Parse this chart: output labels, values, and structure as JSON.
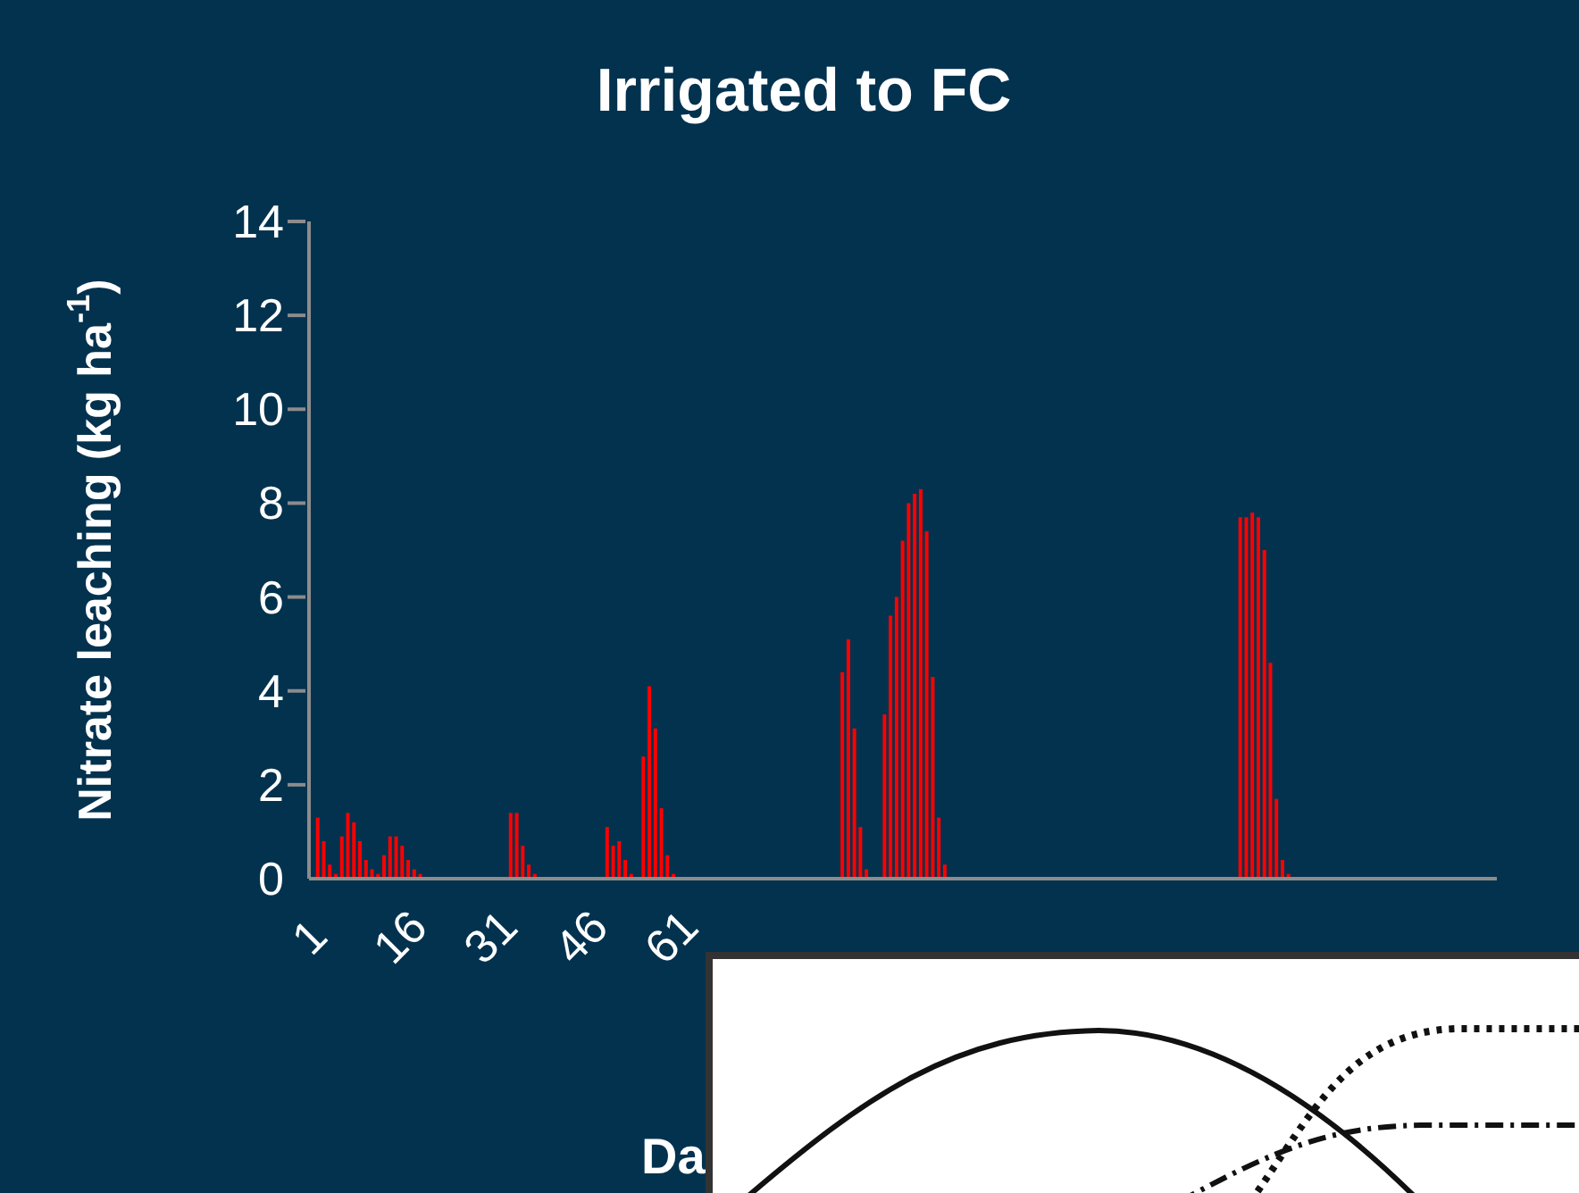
{
  "chart_data": {
    "type": "bar",
    "title": "Irrigated to FC",
    "xlabel": "Da",
    "ylabel": "Nitrate leaching (kg ha$^{-1}$)",
    "categories": [
      "1",
      null,
      null,
      null,
      null,
      null,
      null,
      null,
      null,
      null,
      null,
      null,
      null,
      null,
      null,
      "16",
      null,
      null,
      null,
      null,
      null,
      null,
      null,
      null,
      null,
      null,
      null,
      null,
      null,
      null,
      "31",
      null,
      null,
      null,
      null,
      null,
      null,
      null,
      null,
      null,
      null,
      null,
      null,
      null,
      null,
      "46",
      null,
      null,
      null,
      null,
      null,
      null,
      null,
      null,
      null,
      null,
      null,
      null,
      null,
      null,
      "61",
      null,
      null,
      null,
      null,
      null,
      null,
      null,
      null,
      null,
      null,
      null,
      null,
      null,
      null,
      null,
      null,
      null,
      null,
      null,
      null,
      null,
      null,
      null,
      null,
      null,
      null,
      null,
      null,
      null,
      null,
      null,
      null,
      null,
      null,
      null,
      null,
      null,
      null,
      null,
      null,
      null,
      null,
      null,
      null,
      null,
      null,
      null,
      null,
      null,
      null,
      null,
      null,
      null,
      null,
      null,
      null,
      null,
      null,
      null,
      null,
      null,
      null,
      null,
      null,
      null,
      null,
      null,
      null,
      null,
      null,
      null,
      null,
      null,
      null,
      null,
      null,
      null,
      null,
      null,
      null,
      null,
      null,
      null,
      null,
      null,
      null,
      null,
      null,
      null,
      null,
      null,
      null,
      null,
      null,
      null,
      null,
      null,
      null,
      null,
      null,
      null,
      null,
      null,
      null,
      null,
      null,
      null,
      null,
      null,
      null,
      null,
      null,
      null,
      null,
      null,
      null,
      null,
      null,
      null,
      null,
      null,
      null,
      null,
      null,
      null,
      null,
      null,
      null,
      null,
      null,
      null,
      null,
      null,
      null,
      null,
      null
    ],
    "values": [
      null,
      1.3,
      0.8,
      0.3,
      0.1,
      0.9,
      1.4,
      1.2,
      0.8,
      0.4,
      0.2,
      0.1,
      0.5,
      0.9,
      0.9,
      0.7,
      0.4,
      0.2,
      0.1,
      null,
      null,
      null,
      null,
      null,
      null,
      null,
      null,
      null,
      null,
      null,
      null,
      null,
      null,
      1.4,
      1.4,
      0.7,
      0.3,
      0.1,
      null,
      null,
      null,
      null,
      null,
      null,
      null,
      null,
      null,
      null,
      null,
      1.1,
      0.7,
      0.8,
      0.4,
      0.1,
      null,
      2.6,
      4.1,
      3.2,
      1.5,
      0.5,
      0.1,
      null,
      null,
      null,
      null,
      null,
      null,
      null,
      null,
      null,
      null,
      null,
      null,
      null,
      null,
      null,
      null,
      null,
      null,
      null,
      null,
      null,
      null,
      null,
      null,
      null,
      null,
      null,
      4.4,
      5.1,
      3.2,
      1.1,
      0.2,
      null,
      null,
      3.5,
      5.6,
      6.0,
      7.2,
      8.0,
      8.2,
      8.3,
      7.4,
      4.3,
      1.3,
      0.3,
      null,
      null,
      null,
      null,
      null,
      null,
      null,
      null,
      null,
      null,
      null,
      null,
      null,
      null,
      null,
      null,
      null,
      null,
      null,
      null,
      null,
      null,
      null,
      null,
      null,
      null,
      null,
      null,
      null,
      null,
      null,
      null,
      null,
      null,
      null,
      null,
      null,
      null,
      null,
      null,
      null,
      null,
      null,
      null,
      null,
      null,
      null,
      null,
      7.7,
      7.7,
      7.8,
      7.7,
      7.0,
      4.6,
      1.7,
      0.4,
      0.1,
      null,
      null,
      null,
      null,
      null,
      null,
      null,
      null,
      null,
      null,
      null,
      null,
      null,
      null,
      null,
      null,
      null,
      null,
      null,
      null,
      null,
      null,
      null,
      null,
      null,
      null,
      null,
      null,
      null,
      null,
      null,
      null,
      null,
      null
    ],
    "color": "#ff0000",
    "ylim": [
      0,
      14
    ],
    "yticks": [
      0,
      2,
      4,
      6,
      8,
      10,
      12,
      14
    ],
    "grid": false,
    "legend": false
  }
}
